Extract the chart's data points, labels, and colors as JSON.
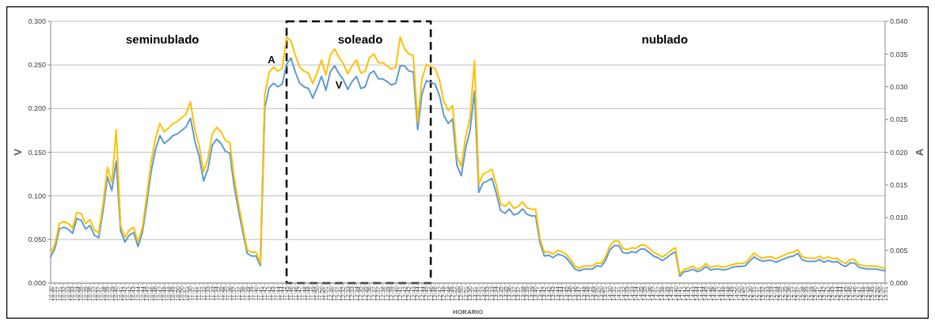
{
  "chart_data": {
    "type": "line",
    "xlabel": "HORARIO",
    "ylabel": "V",
    "y2label": "A",
    "annotations": [
      "seminublado",
      "soleado",
      "nublado"
    ],
    "categories": [
      "10:30",
      "10:31",
      "10:31",
      "10:32",
      "10:33",
      "10:33",
      "10:34",
      "10:35",
      "10:35",
      "10:36",
      "10:37",
      "10:37",
      "10:38",
      "10:39",
      "10:39",
      "10:40",
      "10:41",
      "10:42",
      "10:42",
      "10:43",
      "10:44",
      "10:44",
      "10:45",
      "10:46",
      "10:46",
      "10:47",
      "10:48",
      "10:48",
      "10:49",
      "10:50",
      "10:50",
      "10:51",
      "11:30",
      "11:31",
      "11:31",
      "11:32",
      "11:33",
      "11:33",
      "11:34",
      "11:35",
      "11:35",
      "11:36",
      "11:37",
      "11:37",
      "11:38",
      "11:39",
      "11:39",
      "11:40",
      "11:41",
      "11:42",
      "11:42",
      "11:43",
      "11:44",
      "11:44",
      "11:45",
      "11:46",
      "11:46",
      "11:47",
      "11:48",
      "11:48",
      "11:49",
      "11:50",
      "11:50",
      "11:51",
      "12:30",
      "12:31",
      "12:31",
      "12:32",
      "12:33",
      "12:33",
      "12:34",
      "12:35",
      "12:35",
      "12:36",
      "12:37",
      "12:37",
      "12:38",
      "12:39",
      "12:39",
      "12:40",
      "12:41",
      "12:42",
      "12:42",
      "12:43",
      "12:44",
      "12:44",
      "12:45",
      "12:46",
      "12:46",
      "12:47",
      "12:48",
      "12:48",
      "12:49",
      "12:50",
      "12:50",
      "12:51",
      "13:30",
      "13:31",
      "13:31",
      "13:32",
      "13:33",
      "13:33",
      "13:34",
      "13:35",
      "13:35",
      "13:36",
      "13:37",
      "13:37",
      "13:38",
      "13:39",
      "13:39",
      "13:40",
      "13:41",
      "13:42",
      "13:42",
      "13:43",
      "13:44",
      "13:44",
      "13:45",
      "13:46",
      "13:46",
      "13:47",
      "13:48",
      "13:48",
      "13:49",
      "13:50",
      "13:50",
      "13:51",
      "14:30",
      "14:31",
      "14:31",
      "14:32",
      "14:33",
      "14:33",
      "14:34",
      "14:35",
      "14:35",
      "14:36",
      "14:37",
      "14:37",
      "14:38",
      "14:39",
      "14:39",
      "14:40",
      "14:41",
      "14:42",
      "14:42",
      "14:43",
      "14:44",
      "14:44",
      "14:45",
      "14:46",
      "14:46",
      "14:47",
      "14:48",
      "14:48",
      "14:49",
      "14:50",
      "14:50",
      "14:51",
      "15:30",
      "15:31",
      "15:31",
      "15:32",
      "15:33",
      "15:33",
      "15:34",
      "15:35",
      "15:35",
      "15:36",
      "15:37",
      "15:37",
      "15:38",
      "15:39",
      "15:39",
      "15:40",
      "15:41",
      "15:42",
      "15:42",
      "15:43",
      "15:44",
      "15:44",
      "15:45",
      "15:46",
      "15:46",
      "15:47",
      "15:48",
      "15:48",
      "15:49",
      "15:50",
      "15:50",
      "15:51"
    ],
    "series": [
      {
        "name": "V",
        "color": "#5b9bd5",
        "values": [
          0.03,
          0.04,
          0.062,
          0.064,
          0.062,
          0.057,
          0.074,
          0.072,
          0.062,
          0.066,
          0.055,
          0.052,
          0.083,
          0.122,
          0.106,
          0.14,
          0.06,
          0.047,
          0.055,
          0.058,
          0.042,
          0.058,
          0.091,
          0.128,
          0.153,
          0.169,
          0.16,
          0.164,
          0.169,
          0.171,
          0.175,
          0.179,
          0.189,
          0.163,
          0.145,
          0.117,
          0.131,
          0.158,
          0.165,
          0.16,
          0.151,
          0.149,
          0.111,
          0.083,
          0.058,
          0.034,
          0.031,
          0.031,
          0.02,
          0.2,
          0.224,
          0.229,
          0.225,
          0.228,
          0.251,
          0.258,
          0.242,
          0.229,
          0.225,
          0.223,
          0.212,
          0.224,
          0.237,
          0.221,
          0.242,
          0.249,
          0.24,
          0.233,
          0.222,
          0.231,
          0.237,
          0.223,
          0.225,
          0.24,
          0.243,
          0.234,
          0.234,
          0.231,
          0.227,
          0.229,
          0.249,
          0.249,
          0.243,
          0.242,
          0.176,
          0.217,
          0.232,
          0.23,
          0.228,
          0.215,
          0.192,
          0.183,
          0.188,
          0.135,
          0.123,
          0.155,
          0.175,
          0.22,
          0.104,
          0.115,
          0.117,
          0.12,
          0.103,
          0.083,
          0.08,
          0.085,
          0.078,
          0.08,
          0.085,
          0.079,
          0.077,
          0.077,
          0.046,
          0.031,
          0.032,
          0.029,
          0.033,
          0.032,
          0.029,
          0.023,
          0.016,
          0.014,
          0.016,
          0.016,
          0.016,
          0.02,
          0.019,
          0.026,
          0.038,
          0.043,
          0.043,
          0.035,
          0.034,
          0.036,
          0.035,
          0.039,
          0.039,
          0.035,
          0.031,
          0.029,
          0.026,
          0.029,
          0.033,
          0.036,
          0.008,
          0.013,
          0.014,
          0.016,
          0.013,
          0.015,
          0.019,
          0.015,
          0.016,
          0.016,
          0.015,
          0.016,
          0.018,
          0.019,
          0.019,
          0.02,
          0.025,
          0.03,
          0.027,
          0.025,
          0.026,
          0.026,
          0.024,
          0.026,
          0.028,
          0.03,
          0.031,
          0.034,
          0.027,
          0.025,
          0.025,
          0.025,
          0.027,
          0.024,
          0.026,
          0.024,
          0.025,
          0.021,
          0.019,
          0.023,
          0.023,
          0.018,
          0.017,
          0.016,
          0.016,
          0.016,
          0.015,
          0.014
        ]
      },
      {
        "name": "A",
        "color": "#ffc000",
        "axis": "y2",
        "values": [
          0.0046,
          0.006,
          0.0091,
          0.0094,
          0.0091,
          0.0084,
          0.0108,
          0.0106,
          0.0091,
          0.0097,
          0.0081,
          0.0077,
          0.0121,
          0.0177,
          0.0154,
          0.0234,
          0.0088,
          0.007,
          0.0081,
          0.0085,
          0.0063,
          0.0085,
          0.0133,
          0.0185,
          0.0221,
          0.0244,
          0.0231,
          0.0237,
          0.0244,
          0.0247,
          0.0253,
          0.0258,
          0.0277,
          0.0235,
          0.021,
          0.017,
          0.019,
          0.0228,
          0.0238,
          0.0231,
          0.0218,
          0.0215,
          0.0161,
          0.0121,
          0.0085,
          0.0051,
          0.0047,
          0.0047,
          0.0031,
          0.0288,
          0.0322,
          0.033,
          0.0324,
          0.0328,
          0.0376,
          0.037,
          0.0348,
          0.033,
          0.0324,
          0.0321,
          0.0305,
          0.0322,
          0.0341,
          0.0318,
          0.0348,
          0.0358,
          0.0345,
          0.0335,
          0.032,
          0.0332,
          0.0341,
          0.0321,
          0.0324,
          0.0345,
          0.035,
          0.0337,
          0.0337,
          0.0332,
          0.0327,
          0.033,
          0.0376,
          0.0358,
          0.035,
          0.0348,
          0.0246,
          0.0312,
          0.0334,
          0.0331,
          0.0328,
          0.031,
          0.0277,
          0.0264,
          0.0271,
          0.0195,
          0.0178,
          0.0224,
          0.0253,
          0.034,
          0.0151,
          0.0167,
          0.017,
          0.0174,
          0.015,
          0.0121,
          0.0117,
          0.0124,
          0.0114,
          0.0117,
          0.0124,
          0.0115,
          0.0113,
          0.0113,
          0.0068,
          0.0047,
          0.0048,
          0.0044,
          0.005,
          0.0048,
          0.0044,
          0.0036,
          0.0026,
          0.0023,
          0.0026,
          0.0026,
          0.0026,
          0.0031,
          0.003,
          0.004,
          0.0057,
          0.0064,
          0.0064,
          0.0053,
          0.0051,
          0.0054,
          0.0053,
          0.0058,
          0.0058,
          0.0053,
          0.0047,
          0.0044,
          0.004,
          0.0044,
          0.005,
          0.0054,
          0.0014,
          0.0021,
          0.0023,
          0.0026,
          0.0021,
          0.0024,
          0.003,
          0.0024,
          0.0026,
          0.0026,
          0.0024,
          0.0026,
          0.0028,
          0.003,
          0.003,
          0.0031,
          0.0038,
          0.0046,
          0.0041,
          0.0038,
          0.004,
          0.004,
          0.0037,
          0.004,
          0.0043,
          0.0046,
          0.0047,
          0.0051,
          0.0041,
          0.0038,
          0.0038,
          0.0038,
          0.0041,
          0.0037,
          0.004,
          0.0037,
          0.0038,
          0.0033,
          0.003,
          0.0036,
          0.0036,
          0.0028,
          0.0027,
          0.0026,
          0.0026,
          0.0026,
          0.0024,
          0.0023
        ]
      }
    ],
    "ylim": [
      0,
      0.3
    ],
    "yticks": [
      {
        "value": 0,
        "label": "0.000"
      },
      {
        "value": 0.05,
        "label": "0.050"
      },
      {
        "value": 0.1,
        "label": "0.100"
      },
      {
        "value": 0.15,
        "label": "0.150"
      },
      {
        "value": 0.2,
        "label": "0.200"
      },
      {
        "value": 0.25,
        "label": "0.250"
      },
      {
        "value": 0.3,
        "label": "0.300"
      }
    ],
    "y2lim": [
      0,
      0.04
    ],
    "y2ticks": [
      {
        "value": 0,
        "label": "0.000"
      },
      {
        "value": 0.005,
        "label": "0.005"
      },
      {
        "value": 0.01,
        "label": "0.010"
      },
      {
        "value": 0.015,
        "label": "0.015"
      },
      {
        "value": 0.02,
        "label": "0.020"
      },
      {
        "value": 0.025,
        "label": "0.025"
      },
      {
        "value": 0.03,
        "label": "0.030"
      },
      {
        "value": 0.035,
        "label": "0.035"
      },
      {
        "value": 0.04,
        "label": "0.040"
      }
    ],
    "grid": "y",
    "marker": "none",
    "line_style": "solid"
  }
}
